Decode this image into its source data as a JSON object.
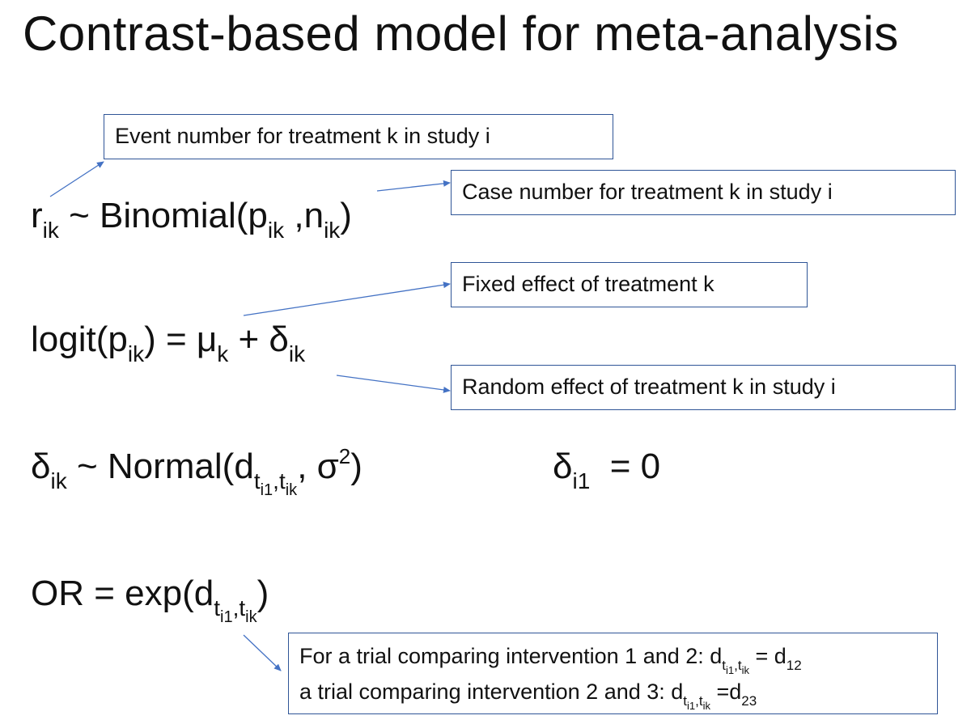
{
  "title": "Contrast-based model for meta-analysis",
  "eq1": {
    "r": "r",
    "r_sub": "ik",
    "mid": " ~ Binomial(p",
    "p_sub": "ik",
    "comma_n": " ,n",
    "n_sub": "ik",
    "close": ")"
  },
  "eq2": {
    "a": "logit(p",
    "a_sub": "ik",
    "b": ") = μ",
    "b_sub": "k",
    "c": " + δ",
    "c_sub": "ik"
  },
  "eq3": {
    "a": "δ",
    "a_sub": "ik",
    "b": " ~ Normal(d",
    "t1": "t",
    "t1_sub": "i1",
    "comma": ",",
    "t2": "t",
    "t2_sub": "ik",
    "c": ", σ",
    "sup": "2",
    "close": ")"
  },
  "eq3b": {
    "a": "δ",
    "a_sub": "i1",
    "b": "  = 0"
  },
  "eq4": {
    "a": "OR = exp(d",
    "t1": "t",
    "t1_sub": "i1",
    "comma": ",",
    "t2": "t",
    "t2_sub": "ik",
    "close": ")"
  },
  "annotations": {
    "event": "Event number for treatment k in study i",
    "case": "Case number for treatment k in study i",
    "fixed": "Fixed effect of treatment k",
    "random": "Random effect of treatment k in study i",
    "example": {
      "line1_a": "For a trial comparing intervention 1 and 2: d",
      "line1_t1": "t",
      "line1_t1_sub": "i1",
      "line1_comma": ",",
      "line1_t2": "t",
      "line1_t2_sub": "ik",
      "line1_b": " = d",
      "line1_b_sub": "12",
      "line2_a": "a trial comparing intervention 2 and 3: d",
      "line2_t1": "t",
      "line2_t1_sub": "i1",
      "line2_comma": ",",
      "line2_t2": "t",
      "line2_t2_sub": "ik",
      "line2_b": " =d",
      "line2_b_sub": "23"
    }
  },
  "colors": {
    "annotation_border": "#2f5597",
    "arrow": "#4472c4",
    "text": "#111111"
  }
}
